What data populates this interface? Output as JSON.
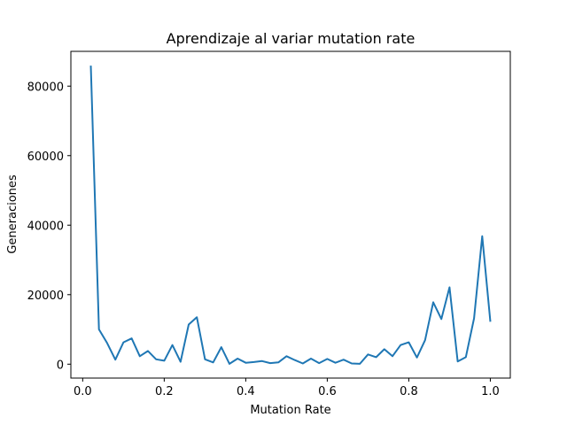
{
  "chart_data": {
    "type": "line",
    "title": "Aprendizaje al variar mutation rate",
    "xlabel": "Mutation Rate",
    "ylabel": "Generaciones",
    "xlim": [
      -0.029,
      1.049
    ],
    "ylim": [
      -4000,
      90000
    ],
    "xticks": [
      0.0,
      0.2,
      0.4,
      0.6,
      0.8,
      1.0
    ],
    "xtick_labels": [
      "0.0",
      "0.2",
      "0.4",
      "0.6",
      "0.8",
      "1.0"
    ],
    "yticks": [
      0,
      20000,
      40000,
      60000,
      80000
    ],
    "ytick_labels": [
      "0",
      "20000",
      "40000",
      "60000",
      "80000"
    ],
    "grid": false,
    "series": [
      {
        "color": "#1f77b4",
        "x": [
          0.02,
          0.04,
          0.06,
          0.08,
          0.1,
          0.12,
          0.14,
          0.16,
          0.18,
          0.2,
          0.22,
          0.24,
          0.26,
          0.28,
          0.3,
          0.32,
          0.34,
          0.36,
          0.38,
          0.4,
          0.42,
          0.44,
          0.46,
          0.48,
          0.5,
          0.52,
          0.54,
          0.56,
          0.58,
          0.6,
          0.62,
          0.64,
          0.66,
          0.68,
          0.7,
          0.72,
          0.74,
          0.76,
          0.78,
          0.8,
          0.82,
          0.84,
          0.86,
          0.88,
          0.9,
          0.92,
          0.94,
          0.96,
          0.98,
          1.0
        ],
        "y": [
          85900,
          10000,
          6100,
          1300,
          6300,
          7400,
          2300,
          3800,
          1400,
          1000,
          5500,
          700,
          11400,
          13500,
          1400,
          500,
          4900,
          100,
          1600,
          400,
          600,
          900,
          300,
          500,
          2300,
          1200,
          200,
          1600,
          300,
          1500,
          400,
          1300,
          200,
          100,
          2800,
          2000,
          4300,
          2300,
          5500,
          6300,
          1900,
          6900,
          17800,
          13000,
          22100,
          800,
          2000,
          13200,
          36800,
          12200
        ]
      }
    ]
  }
}
